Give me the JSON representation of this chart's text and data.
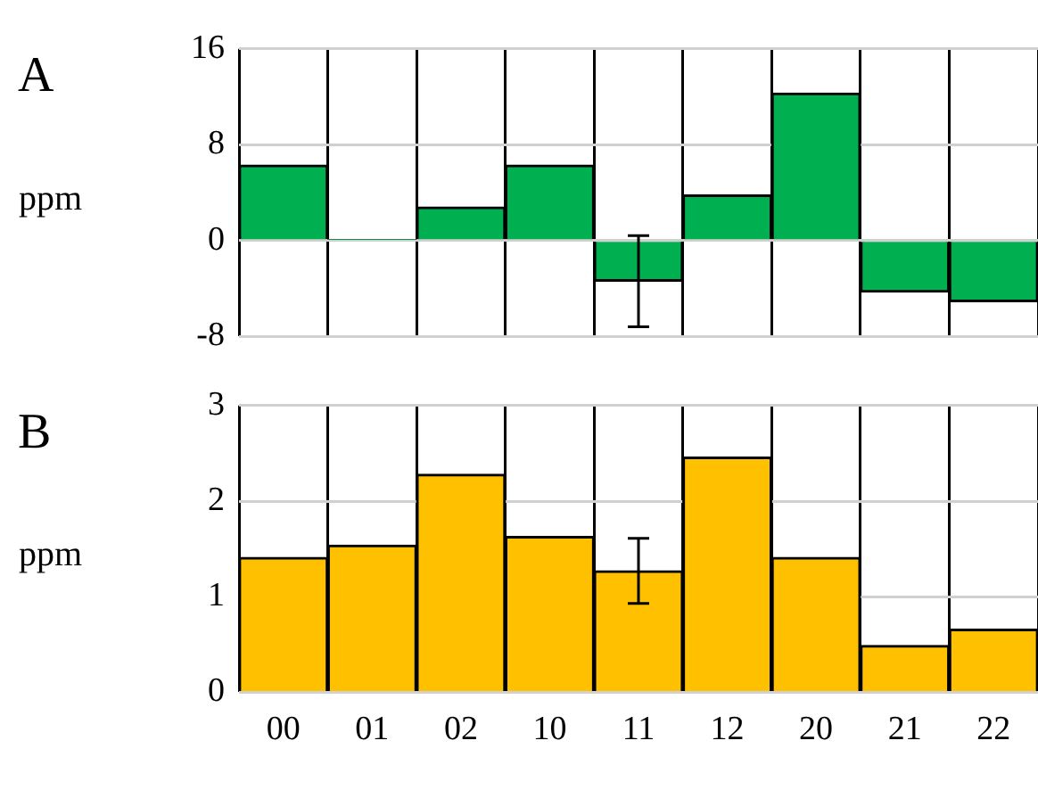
{
  "chart_data": [
    {
      "type": "bar",
      "title": "A",
      "ylabel": "ppm",
      "categories": [
        "00",
        "01",
        "02",
        "10",
        "11",
        "12",
        "20",
        "21",
        "22"
      ],
      "values": [
        6.3,
        0.1,
        2.8,
        6.3,
        -3.4,
        3.8,
        12.3,
        -4.3,
        -5.1
      ],
      "errors": [
        null,
        null,
        null,
        null,
        3.8,
        null,
        null,
        null,
        null
      ],
      "color": "#00b050",
      "ylim": [
        -8,
        16
      ],
      "yticks": [
        -8,
        0,
        8,
        16
      ],
      "grid": true,
      "tick_labels": "y"
    },
    {
      "type": "bar",
      "title": "B",
      "ylabel": "ppm",
      "categories": [
        "00",
        "01",
        "02",
        "10",
        "11",
        "12",
        "20",
        "21",
        "22"
      ],
      "values": [
        1.41,
        1.54,
        2.28,
        1.63,
        1.27,
        2.46,
        1.41,
        0.49,
        0.66
      ],
      "errors": [
        null,
        null,
        null,
        null,
        0.34,
        null,
        null,
        null,
        null
      ],
      "color": "#ffc000",
      "ylim": [
        0,
        3
      ],
      "yticks": [
        0,
        1,
        2,
        3
      ],
      "grid": true
    }
  ]
}
